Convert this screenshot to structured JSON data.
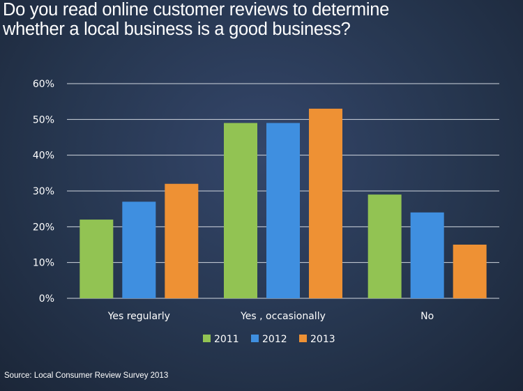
{
  "title_lines": [
    "Do you read online customer reviews to determine",
    "whether a local business is a good business?"
  ],
  "source": "Source: Local Consumer Review Survey 2013",
  "chart_data": {
    "type": "bar",
    "title": "Do you read online customer reviews to determine whether a local business is a good business?",
    "categories": [
      "Yes regularly",
      "Yes , occasionally",
      "No"
    ],
    "series": [
      {
        "name": "2011",
        "color": "#92c353",
        "values": [
          22,
          49,
          29
        ]
      },
      {
        "name": "2012",
        "color": "#3f8fe0",
        "values": [
          27,
          49,
          24
        ]
      },
      {
        "name": "2013",
        "color": "#ee9134",
        "values": [
          32,
          53,
          15
        ]
      }
    ],
    "ylim": [
      0,
      60
    ],
    "yticks": [
      0,
      10,
      20,
      30,
      40,
      50,
      60
    ],
    "ytick_labels": [
      "0%",
      "10%",
      "20%",
      "30%",
      "40%",
      "50%",
      "60%"
    ],
    "grid": true,
    "legend": "bottom",
    "xlabel": "",
    "ylabel": ""
  }
}
